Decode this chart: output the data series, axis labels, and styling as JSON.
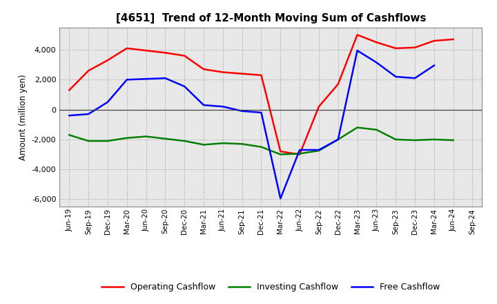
{
  "title": "[4651]  Trend of 12-Month Moving Sum of Cashflows",
  "ylabel": "Amount (million yen)",
  "x_labels": [
    "Jun-19",
    "Sep-19",
    "Dec-19",
    "Mar-20",
    "Jun-20",
    "Sep-20",
    "Dec-20",
    "Mar-21",
    "Jun-21",
    "Sep-21",
    "Dec-21",
    "Mar-22",
    "Jun-22",
    "Sep-22",
    "Dec-22",
    "Mar-23",
    "Jun-23",
    "Sep-23",
    "Dec-23",
    "Mar-24",
    "Jun-24",
    "Sep-24"
  ],
  "operating": [
    1300,
    2600,
    3300,
    4100,
    3950,
    3800,
    3600,
    2700,
    2500,
    2400,
    2300,
    -2800,
    -3000,
    200,
    1700,
    5000,
    4500,
    4100,
    4150,
    4600,
    4700,
    null
  ],
  "investing": [
    -1700,
    -2100,
    -2100,
    -1900,
    -1800,
    -1950,
    -2100,
    -2350,
    -2250,
    -2300,
    -2500,
    -3000,
    -2950,
    -2750,
    -2000,
    -1200,
    -1350,
    -2000,
    -2050,
    -2000,
    -2050,
    null
  ],
  "free": [
    -400,
    -300,
    500,
    2000,
    2050,
    2100,
    1550,
    300,
    200,
    -100,
    -200,
    -5950,
    -2700,
    -2700,
    -2000,
    3950,
    3150,
    2200,
    2100,
    2950,
    null,
    null
  ],
  "ylim": [
    -6500,
    5500
  ],
  "yticks": [
    -6000,
    -4000,
    -2000,
    0,
    2000,
    4000
  ],
  "operating_color": "#ff0000",
  "investing_color": "#008000",
  "free_color": "#0000ff",
  "bg_color": "#ffffff",
  "plot_bg_color": "#e8e8e8",
  "grid_color": "#999999",
  "legend_labels": [
    "Operating Cashflow",
    "Investing Cashflow",
    "Free Cashflow"
  ]
}
